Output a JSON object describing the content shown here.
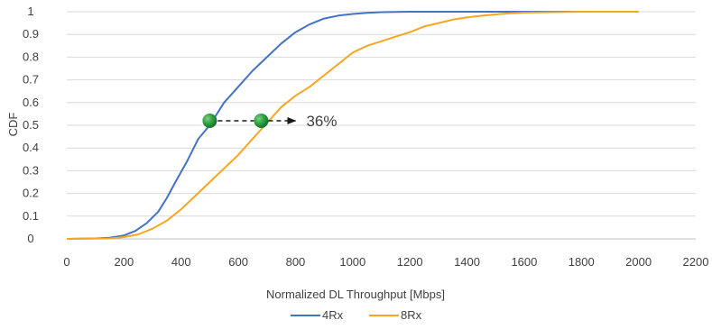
{
  "chart_data": {
    "type": "line",
    "title": "",
    "xlabel": "Normalized DL Throughput [Mbps]",
    "ylabel": "CDF",
    "xlim": [
      0,
      2200
    ],
    "ylim": [
      0,
      1
    ],
    "x_ticks": [
      "0",
      "200",
      "400",
      "600",
      "800",
      "1000",
      "1200",
      "1400",
      "1600",
      "1800",
      "2000",
      "2200"
    ],
    "y_ticks": [
      "0",
      "0.1",
      "0.2",
      "0.3",
      "0.4",
      "0.5",
      "0.6",
      "0.7",
      "0.8",
      "0.9",
      "1"
    ],
    "grid": "horizontal",
    "legend_position": "bottom",
    "series": [
      {
        "name": "4Rx",
        "color": "#4472c4",
        "points": [
          [
            0,
            0
          ],
          [
            100,
            0.002
          ],
          [
            150,
            0.005
          ],
          [
            200,
            0.015
          ],
          [
            240,
            0.035
          ],
          [
            280,
            0.07
          ],
          [
            320,
            0.12
          ],
          [
            350,
            0.18
          ],
          [
            380,
            0.25
          ],
          [
            420,
            0.34
          ],
          [
            460,
            0.44
          ],
          [
            500,
            0.5
          ],
          [
            550,
            0.6
          ],
          [
            600,
            0.67
          ],
          [
            650,
            0.74
          ],
          [
            700,
            0.8
          ],
          [
            750,
            0.86
          ],
          [
            800,
            0.91
          ],
          [
            850,
            0.945
          ],
          [
            900,
            0.97
          ],
          [
            950,
            0.983
          ],
          [
            1000,
            0.99
          ],
          [
            1050,
            0.995
          ],
          [
            1100,
            0.998
          ],
          [
            1200,
            1
          ],
          [
            1500,
            1
          ],
          [
            1800,
            1
          ],
          [
            2000,
            1
          ]
        ]
      },
      {
        "name": "8Rx",
        "color": "#f5a623",
        "points": [
          [
            0,
            0
          ],
          [
            150,
            0.002
          ],
          [
            200,
            0.008
          ],
          [
            250,
            0.02
          ],
          [
            300,
            0.045
          ],
          [
            350,
            0.08
          ],
          [
            400,
            0.13
          ],
          [
            450,
            0.19
          ],
          [
            500,
            0.25
          ],
          [
            550,
            0.31
          ],
          [
            600,
            0.37
          ],
          [
            650,
            0.44
          ],
          [
            700,
            0.51
          ],
          [
            750,
            0.58
          ],
          [
            800,
            0.63
          ],
          [
            850,
            0.67
          ],
          [
            900,
            0.72
          ],
          [
            950,
            0.77
          ],
          [
            1000,
            0.82
          ],
          [
            1050,
            0.85
          ],
          [
            1100,
            0.87
          ],
          [
            1150,
            0.89
          ],
          [
            1200,
            0.91
          ],
          [
            1250,
            0.935
          ],
          [
            1300,
            0.95
          ],
          [
            1350,
            0.965
          ],
          [
            1400,
            0.975
          ],
          [
            1450,
            0.982
          ],
          [
            1500,
            0.988
          ],
          [
            1550,
            0.993
          ],
          [
            1600,
            0.996
          ],
          [
            1700,
            0.998
          ],
          [
            1800,
            1
          ],
          [
            2000,
            1
          ]
        ]
      }
    ],
    "annotations": [
      {
        "text": "36%",
        "marker_color": "#2ea043",
        "from": [
          500,
          0.52
        ],
        "to": [
          680,
          0.52
        ],
        "arrow_end_x": 800
      }
    ]
  }
}
